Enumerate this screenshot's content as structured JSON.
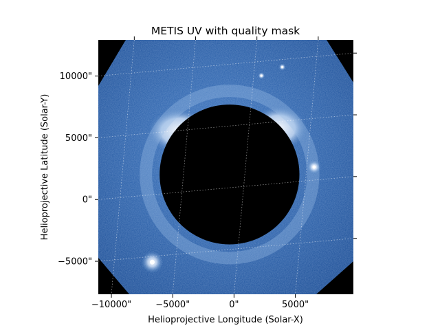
{
  "chart_data": {
    "type": "heatmap",
    "title": "METIS UV with quality mask",
    "xlabel": "Helioprojective Longitude (Solar-X)",
    "ylabel": "Helioprojective Latitude (Solar-Y)",
    "x_range_arcsec": [
      -12000,
      8800
    ],
    "y_range_arcsec": [
      -8600,
      12000
    ],
    "x_ticks": [
      {
        "value": -10000,
        "label": "−10000\""
      },
      {
        "value": -5000,
        "label": "−5000\""
      },
      {
        "value": 0,
        "label": "0\""
      },
      {
        "value": 5000,
        "label": "5000\""
      }
    ],
    "y_ticks": [
      {
        "value": 10000,
        "label": "10000\""
      },
      {
        "value": 5000,
        "label": "5000\""
      },
      {
        "value": 0,
        "label": "0\""
      },
      {
        "value": -5000,
        "label": "−5000\""
      }
    ],
    "occulter": {
      "center_x": -1300,
      "center_y": 1100,
      "radius": 5700
    },
    "bright_sources": [
      {
        "x": -7600,
        "y": -6000,
        "magnitude": "bright"
      },
      {
        "x": 5600,
        "y": 1700,
        "magnitude": "medium"
      },
      {
        "x": 3000,
        "y": 9800,
        "magnitude": "faint"
      },
      {
        "x": 1300,
        "y": 9100,
        "magnitude": "faint"
      }
    ],
    "colormap": [
      "#000000",
      "#14428a",
      "#2a64b0",
      "#5b8fcc",
      "#bcd2ef",
      "#ffffff"
    ],
    "grid": true,
    "masked_color": "#000000"
  }
}
